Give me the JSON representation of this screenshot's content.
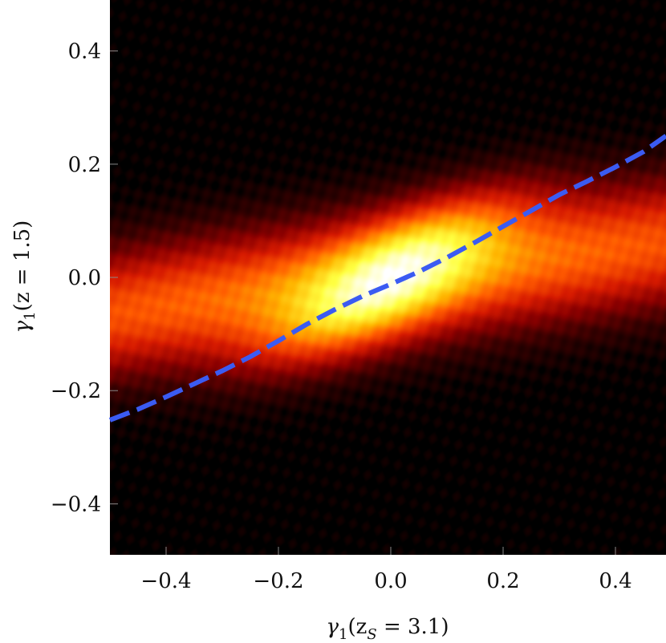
{
  "chart_data": {
    "type": "heatmap",
    "title": "",
    "xlabel": {
      "symbol": "γ",
      "sub": "1",
      "text": "(z",
      "sub2": "S",
      "rest": " = 3.1)"
    },
    "ylabel": {
      "symbol": "γ",
      "sub": "1",
      "rest": "(z = 1.5)"
    },
    "xlim": [
      -0.5,
      0.49
    ],
    "ylim": [
      -0.49,
      0.49
    ],
    "x_ticks": [
      {
        "value": -0.4,
        "label": "−0.4"
      },
      {
        "value": -0.2,
        "label": "−0.2"
      },
      {
        "value": 0.0,
        "label": "0.0"
      },
      {
        "value": 0.2,
        "label": "0.2"
      },
      {
        "value": 0.4,
        "label": "0.4"
      }
    ],
    "y_ticks": [
      {
        "value": -0.4,
        "label": "−0.4"
      },
      {
        "value": -0.2,
        "label": "−0.2"
      },
      {
        "value": 0.0,
        "label": "0.0"
      },
      {
        "value": 0.2,
        "label": "0.2"
      },
      {
        "value": 0.4,
        "label": "0.4"
      }
    ],
    "density": {
      "model": "correlated bivariate gaussian plus marginal tails",
      "slope": 0.5,
      "core_sigma_parallel": 0.15,
      "core_sigma_perp": 0.055,
      "tail_sigma_y": 0.075,
      "tail_weight": 0.55
    },
    "colormap": [
      "#000000",
      "#3a0000",
      "#8b0000",
      "#d61a00",
      "#ff5a00",
      "#ffb400",
      "#ffff40",
      "#ffffff"
    ],
    "background_color": "#0b0000",
    "grid": false,
    "series": [
      {
        "style": "dashed",
        "color": "#3b5bf2",
        "x": [
          -0.5,
          -0.45,
          -0.4,
          -0.35,
          -0.3,
          -0.25,
          -0.2,
          -0.15,
          -0.1,
          -0.05,
          0.0,
          0.05,
          0.1,
          0.15,
          0.2,
          0.25,
          0.3,
          0.35,
          0.4,
          0.45,
          0.49
        ],
        "y": [
          -0.252,
          -0.233,
          -0.211,
          -0.188,
          -0.165,
          -0.14,
          -0.112,
          -0.083,
          -0.057,
          -0.033,
          -0.012,
          0.01,
          0.035,
          0.062,
          0.09,
          0.118,
          0.146,
          0.17,
          0.195,
          0.222,
          0.25
        ]
      }
    ]
  }
}
